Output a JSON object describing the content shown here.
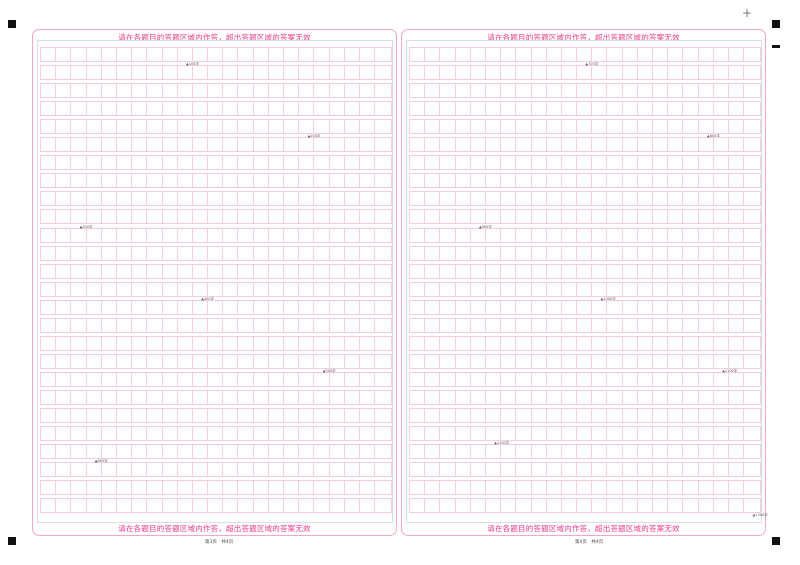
{
  "notice_text": "请在各题目的答题区域内作答，超出答题区域的答案无效",
  "pages": [
    {
      "footer": "第3页　共4页",
      "markers": [
        "▲100字",
        "▲200字",
        "▲300字",
        "▲400字",
        "▲500字",
        "▲600字"
      ]
    },
    {
      "footer": "第4页　共4页",
      "markers": [
        "▲700字",
        "▲800字",
        "▲900字",
        "▲1000字",
        "▲1100字",
        "▲1200字",
        "▲1300字"
      ]
    }
  ],
  "grid": {
    "columns": 23,
    "rows": 26
  },
  "colors": {
    "accent": "#e8388a",
    "grid_line": "#f9cde0",
    "panel_border": "#f4a6c8"
  }
}
